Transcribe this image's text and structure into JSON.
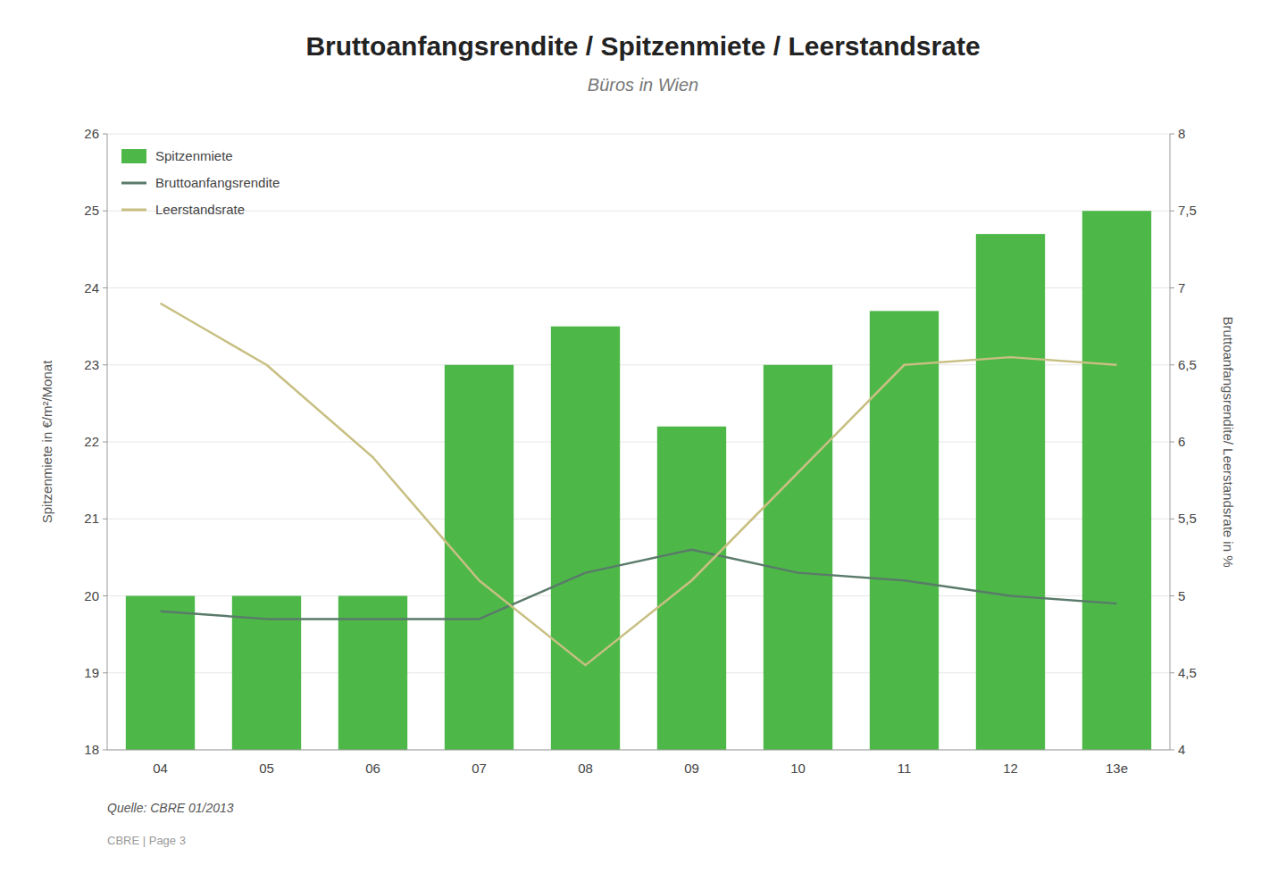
{
  "chart_data": {
    "type": "bar",
    "title": "Bruttoanfangsrendite / Spitzenmiete / Leerstandsrate",
    "subtitle": "Büros in Wien",
    "categories": [
      "04",
      "05",
      "06",
      "07",
      "08",
      "09",
      "10",
      "11",
      "12",
      "13e"
    ],
    "series": [
      {
        "name": "Spitzenmiete",
        "type": "bar",
        "color": "#4db848",
        "values": [
          20,
          20,
          20,
          23,
          23.5,
          22.2,
          23,
          23.7,
          24.7,
          25
        ]
      },
      {
        "name": "Bruttoanfangsrendite",
        "type": "line",
        "color": "#5a7a6a",
        "axis": "y2",
        "values": [
          4.9,
          4.85,
          4.85,
          4.85,
          5.15,
          5.3,
          5.15,
          5.1,
          5.0,
          4.95
        ]
      },
      {
        "name": "Leerstandsrate",
        "type": "line",
        "color": "#c8bf82",
        "axis": "y2",
        "values": [
          6.9,
          6.5,
          5.9,
          5.1,
          4.55,
          5.1,
          5.8,
          6.5,
          6.55,
          6.5
        ]
      }
    ],
    "ylabel": "Spitzenmiete in €/m²/Monat",
    "y2label": "Bruttoanfangsrendite/ Leerstandsrate in %",
    "ylim": [
      18,
      26
    ],
    "yticks": [
      18,
      19,
      20,
      21,
      22,
      23,
      24,
      25,
      26
    ],
    "y2lim": [
      4,
      8
    ],
    "y2ticks": [
      4,
      {
        "value": 4.5,
        "label": "4,5"
      },
      5,
      {
        "value": 5.5,
        "label": "5,5"
      },
      6,
      {
        "value": 6.5,
        "label": "6,5"
      },
      7,
      {
        "value": 7.5,
        "label": "7,5"
      },
      8
    ],
    "grid": true,
    "legend": "upper left",
    "annotations": [
      "Quelle: CBRE 01/2013",
      "CBRE | Page 3"
    ]
  }
}
